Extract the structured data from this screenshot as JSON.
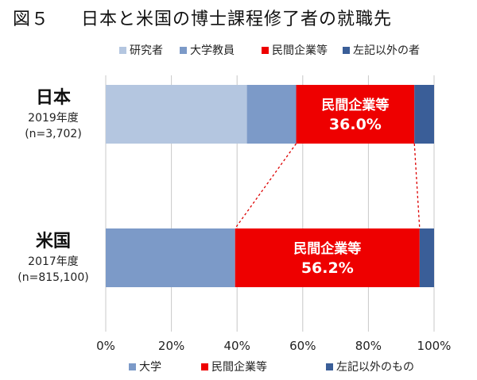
{
  "title": {
    "prefix": "図５",
    "text": "日本と米国の博士課程修了者の就職先"
  },
  "colors": {
    "researcher": "#b4c6e0",
    "university": "#7c9ac8",
    "private": "#ee0000",
    "other": "#3a5e98",
    "grid": "#c8c8c8",
    "dash": "#dd0000"
  },
  "chart_data": {
    "type": "bar",
    "orientation": "horizontal",
    "stacked": true,
    "xlim": [
      0,
      100
    ],
    "x_ticks": [
      "0%",
      "20%",
      "40%",
      "60%",
      "80%",
      "100%"
    ],
    "grid": true,
    "bars": [
      {
        "name": "日本",
        "year": "2019年度",
        "n": "(n=3,702)",
        "segments": [
          {
            "key": "researcher",
            "label": "研究者",
            "value": 43.0
          },
          {
            "key": "university",
            "label": "大学教員",
            "value": 15.0
          },
          {
            "key": "private",
            "label": "民間企業等",
            "value": 36.0,
            "data_label": "民間企業等",
            "value_label": "36.0%"
          },
          {
            "key": "other",
            "label": "左記以外の者",
            "value": 6.0
          }
        ]
      },
      {
        "name": "米国",
        "year": "2017年度",
        "n": "(n=815,100)",
        "segments": [
          {
            "key": "university",
            "label": "大学",
            "value": 39.4
          },
          {
            "key": "private",
            "label": "民間企業等",
            "value": 56.2,
            "data_label": "民間企業等",
            "value_label": "56.2%"
          },
          {
            "key": "other",
            "label": "左記以外のもの",
            "value": 4.4
          }
        ]
      }
    ],
    "legend_top": [
      {
        "key": "researcher",
        "label": "研究者"
      },
      {
        "key": "university",
        "label": "大学教員"
      },
      {
        "key": "private",
        "label": "民間企業等"
      },
      {
        "key": "other",
        "label": "左記以外の者"
      }
    ],
    "legend_bottom": [
      {
        "key": "university",
        "label": "大学"
      },
      {
        "key": "private",
        "label": "民間企業等"
      },
      {
        "key": "other",
        "label": "左記以外のもの"
      }
    ]
  }
}
